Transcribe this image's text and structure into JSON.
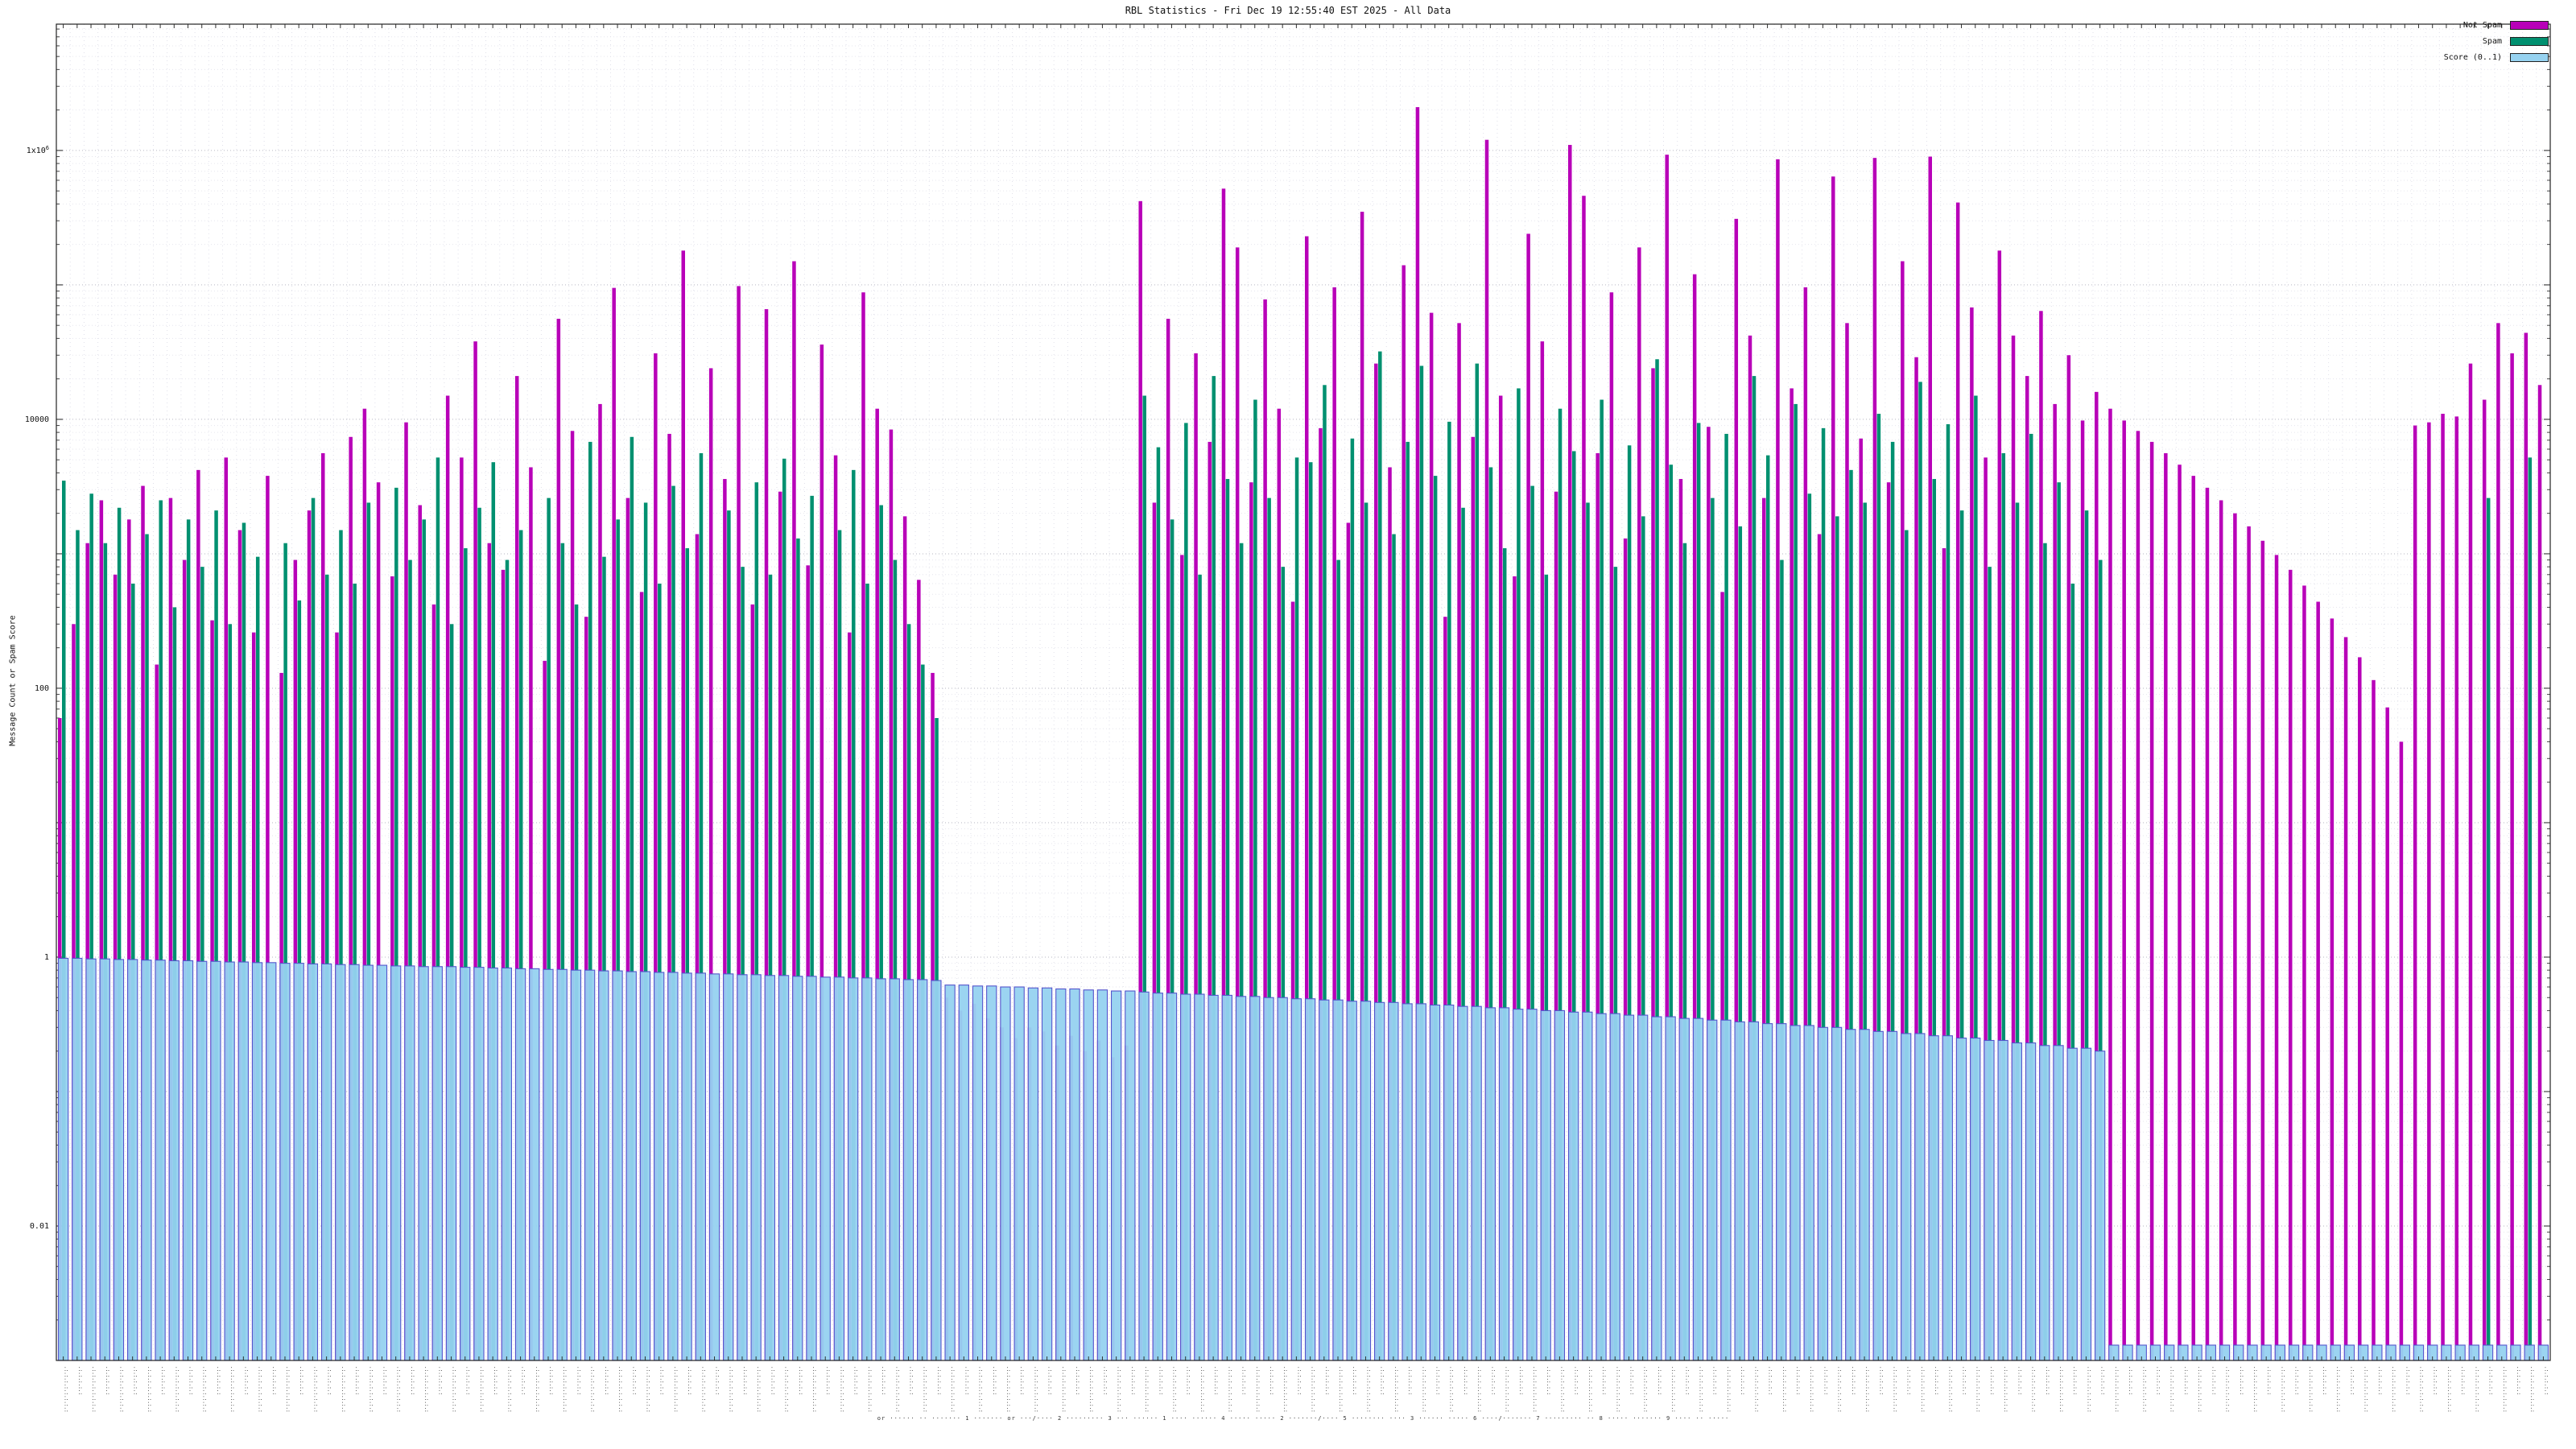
{
  "chart_data": {
    "type": "bar",
    "title": "RBL Statistics - Fri Dec 19 12:55:40 EST 2025 - All Data",
    "ylabel": "Message Count or Spam Score",
    "xlabel": "",
    "y_scale": "log",
    "ylim": [
      0.001,
      8700000
    ],
    "grid": true,
    "legend_position": "top-right",
    "yticks": [
      {
        "v": 0.01,
        "label": "0.01"
      },
      {
        "v": 1,
        "label": "1"
      },
      {
        "v": 100,
        "label": "100"
      },
      {
        "v": 10000,
        "label": "10000"
      },
      {
        "v": 1000000,
        "label": "1x10^6"
      }
    ],
    "x_tick_note": "illegible rotated rule/RBL names along x axis",
    "x_tick_placeholder": ".:.:.:.:.:.:.:.:",
    "x_axis_footer": "or ······ ·· ·······   1 ·······   or ···/····   2 ·········   3 ··· ······   1 ···· ······   4 ····· ·····   2 ·······/····   5 ········ ····   3 ······ ·····   6 ····/·······   7 ········· ··   8 ····· ·······   9 ···· ·· ·····",
    "series": [
      {
        "name": "Not Spam",
        "color": "#b800b8",
        "values": [
          60,
          300,
          1200,
          2500,
          700,
          1800,
          3200,
          150,
          2600,
          900,
          4200,
          320,
          5200,
          1500,
          260,
          3800,
          130,
          900,
          2100,
          5600,
          260,
          7400,
          12000,
          3400,
          680,
          9500,
          2300,
          420,
          15000,
          5200,
          38000,
          1200,
          760,
          21000,
          4400,
          160,
          56000,
          8200,
          340,
          13000,
          95000,
          2600,
          520,
          31000,
          7800,
          180000,
          1400,
          24000,
          3600,
          98000,
          420,
          66000,
          2900,
          150000,
          820,
          36000,
          5400,
          260,
          88000,
          12000,
          8400,
          1900,
          640,
          130,
          0.5,
          0.4,
          0.45,
          0.35,
          0.3,
          0.25,
          0.3,
          0.28,
          0.22,
          0.26,
          0.2,
          0.24,
          0.18,
          0.22,
          420000,
          2400,
          56000,
          980,
          31000,
          6800,
          520000,
          190000,
          3400,
          78000,
          12000,
          440,
          230000,
          8600,
          96000,
          1700,
          350000,
          26000,
          4400,
          140000,
          2100000,
          62000,
          340,
          52000,
          7400,
          1200000,
          15000,
          680,
          240000,
          38000,
          2900,
          1100000,
          460000,
          5600,
          88000,
          1300,
          190000,
          24000,
          930000,
          3600,
          120000,
          8800,
          520,
          310000,
          42000,
          2600,
          860000,
          17000,
          96000,
          1400,
          640000,
          52000,
          7200,
          880000,
          3400,
          150000,
          29000,
          900000,
          1100,
          410000,
          68000,
          5200,
          180000,
          42000,
          21000,
          64000,
          13000,
          30000,
          9800,
          16000,
          12000,
          9800,
          8200,
          6800,
          5600,
          4600,
          3800,
          3100,
          2500,
          2000,
          1600,
          1250,
          980,
          760,
          580,
          440,
          330,
          240,
          170,
          115,
          72,
          40,
          9000,
          9500,
          11000,
          10500,
          26000,
          14000,
          52000,
          31000,
          44000,
          18000
        ]
      },
      {
        "name": "Spam",
        "color": "#009070",
        "values": [
          3500,
          1500,
          2800,
          1200,
          2200,
          600,
          1400,
          2500,
          400,
          1800,
          800,
          2100,
          300,
          1700,
          950,
          0,
          1200,
          450,
          2600,
          700,
          1500,
          600,
          2400,
          0,
          3100,
          900,
          1800,
          5200,
          300,
          1100,
          2200,
          4800,
          900,
          1500,
          0,
          2600,
          1200,
          420,
          6800,
          950,
          1800,
          7400,
          2400,
          600,
          3200,
          1100,
          5600,
          0,
          2100,
          800,
          3400,
          700,
          5100,
          1300,
          2700,
          0,
          1500,
          4200,
          600,
          2300,
          900,
          300,
          150,
          60,
          0,
          0,
          0,
          0,
          0,
          0,
          0,
          0,
          0,
          0,
          0,
          0,
          0,
          0,
          15000,
          6200,
          1800,
          9400,
          700,
          21000,
          3600,
          1200,
          14000,
          2600,
          800,
          5200,
          4800,
          18000,
          900,
          7200,
          2400,
          32000,
          1400,
          6800,
          25000,
          3800,
          9600,
          2200,
          26000,
          4400,
          1100,
          17000,
          3200,
          700,
          12000,
          5800,
          2400,
          14000,
          800,
          6400,
          1900,
          28000,
          4600,
          1200,
          9400,
          2600,
          7800,
          1600,
          21000,
          5400,
          900,
          13000,
          2800,
          8600,
          1900,
          4200,
          2400,
          11000,
          6800,
          1500,
          19000,
          3600,
          9200,
          2100,
          15000,
          800,
          5600,
          2400,
          7800,
          1200,
          3400,
          600,
          2100,
          900,
          0,
          0,
          0,
          0,
          0,
          0,
          0,
          0,
          0,
          0,
          0,
          0,
          0,
          0,
          0,
          0,
          0,
          0,
          0,
          0,
          0,
          0,
          0,
          0,
          0,
          0,
          0,
          2600,
          0,
          0,
          5200,
          0
        ]
      },
      {
        "name": "Score (0..1)",
        "color": "#96d2f0",
        "stroke": "#5555cc",
        "values": [
          0.98,
          0.98,
          0.97,
          0.97,
          0.96,
          0.96,
          0.95,
          0.95,
          0.94,
          0.94,
          0.93,
          0.93,
          0.92,
          0.92,
          0.91,
          0.91,
          0.9,
          0.9,
          0.89,
          0.89,
          0.88,
          0.88,
          0.87,
          0.87,
          0.86,
          0.86,
          0.85,
          0.85,
          0.85,
          0.84,
          0.84,
          0.83,
          0.83,
          0.82,
          0.82,
          0.81,
          0.81,
          0.8,
          0.8,
          0.79,
          0.79,
          0.78,
          0.78,
          0.77,
          0.77,
          0.76,
          0.76,
          0.75,
          0.75,
          0.74,
          0.74,
          0.73,
          0.73,
          0.72,
          0.72,
          0.71,
          0.71,
          0.7,
          0.7,
          0.69,
          0.69,
          0.68,
          0.68,
          0.67,
          0.62,
          0.62,
          0.61,
          0.61,
          0.6,
          0.6,
          0.59,
          0.59,
          0.58,
          0.58,
          0.57,
          0.57,
          0.56,
          0.56,
          0.55,
          0.54,
          0.54,
          0.53,
          0.53,
          0.52,
          0.52,
          0.51,
          0.51,
          0.5,
          0.5,
          0.49,
          0.49,
          0.48,
          0.48,
          0.47,
          0.47,
          0.46,
          0.46,
          0.45,
          0.45,
          0.44,
          0.44,
          0.43,
          0.43,
          0.42,
          0.42,
          0.41,
          0.41,
          0.4,
          0.4,
          0.39,
          0.39,
          0.38,
          0.38,
          0.37,
          0.37,
          0.36,
          0.36,
          0.35,
          0.35,
          0.34,
          0.34,
          0.33,
          0.33,
          0.32,
          0.32,
          0.31,
          0.31,
          0.3,
          0.3,
          0.29,
          0.29,
          0.28,
          0.28,
          0.27,
          0.27,
          0.26,
          0.26,
          0.25,
          0.25,
          0.24,
          0.24,
          0.23,
          0.23,
          0.22,
          0.22,
          0.21,
          0.21,
          0.2,
          0.0013,
          0.0013,
          0.0013,
          0.0013,
          0.0013,
          0.0013,
          0.0013,
          0.0013,
          0.0013,
          0.0013,
          0.0013,
          0.0013,
          0.0013,
          0.0013,
          0.0013,
          0.0013,
          0.0013,
          0.0013,
          0.0013,
          0.0013,
          0.0013,
          0.0013,
          0.0013,
          0.0013,
          0.0013,
          0.0013,
          0.0013,
          0.0013,
          0.0013,
          0.0013,
          0.0013,
          0.0013
        ]
      }
    ]
  }
}
